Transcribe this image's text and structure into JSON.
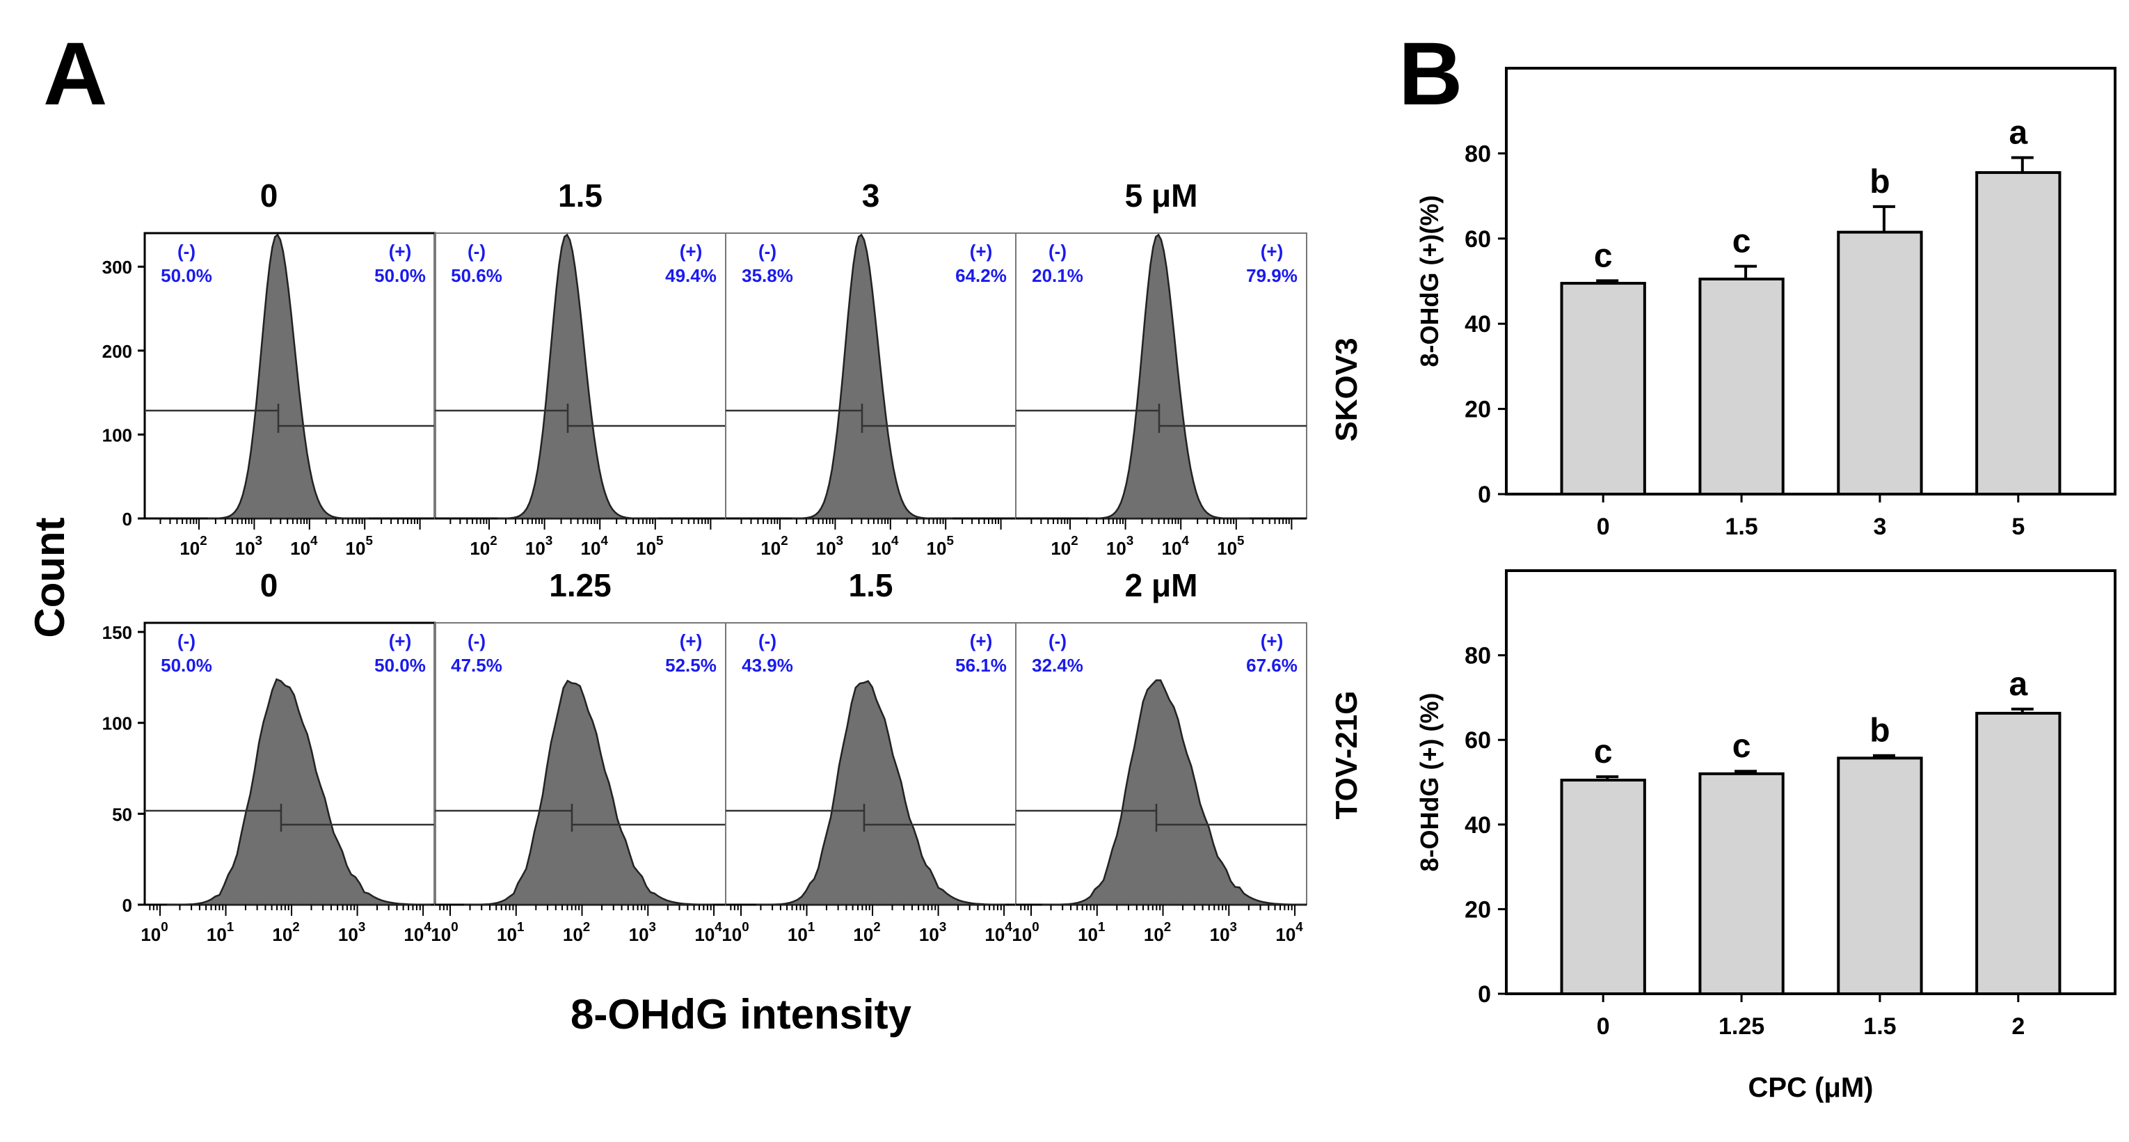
{
  "panels": {
    "a_label": "A",
    "b_label": "B"
  },
  "panel_a": {
    "y_title": "Count",
    "x_title": "8-OHdG intensity",
    "rows": [
      {
        "cell_line": "SKOV3",
        "y_ticks": [
          0,
          100,
          200,
          300
        ],
        "x_ticks": [
          "10^2",
          "10^3",
          "10^4",
          "10^5"
        ],
        "neg_label": "(-)",
        "pos_label": "(+)",
        "panels": [
          {
            "dose": "0",
            "neg_pct": "50.0%",
            "pos_pct": "50.0%"
          },
          {
            "dose": "1.5",
            "neg_pct": "50.6%",
            "pos_pct": "49.4%"
          },
          {
            "dose": "3",
            "neg_pct": "35.8%",
            "pos_pct": "64.2%"
          },
          {
            "dose": "5 μM",
            "neg_pct": "20.1%",
            "pos_pct": "79.9%"
          }
        ]
      },
      {
        "cell_line": "TOV-21G",
        "y_ticks": [
          0,
          50,
          100,
          150
        ],
        "x_ticks": [
          "10^0",
          "10^1",
          "10^2",
          "10^3",
          "10^4"
        ],
        "neg_label": "(-)",
        "pos_label": "(+)",
        "panels": [
          {
            "dose": "0",
            "neg_pct": "50.0%",
            "pos_pct": "50.0%"
          },
          {
            "dose": "1.25",
            "neg_pct": "47.5%",
            "pos_pct": "52.5%"
          },
          {
            "dose": "1.5",
            "neg_pct": "43.9%",
            "pos_pct": "56.1%"
          },
          {
            "dose": "2 μM",
            "neg_pct": "32.4%",
            "pos_pct": "67.6%"
          }
        ]
      }
    ]
  },
  "chart_data": [
    {
      "type": "bar",
      "title": "",
      "categories": [
        "0",
        "1.5",
        "3",
        "5"
      ],
      "values": [
        49.5,
        50.5,
        61.5,
        75.5
      ],
      "errors": [
        0.6,
        3.0,
        6.0,
        3.5
      ],
      "significance": [
        "c",
        "c",
        "b",
        "a"
      ],
      "ylabel": "8-OHdG (+)(%)",
      "xlabel": "",
      "ylim": [
        0,
        100
      ],
      "y_ticks": [
        0,
        20,
        40,
        60,
        80
      ]
    },
    {
      "type": "bar",
      "title": "",
      "categories": [
        "0",
        "1.25",
        "1.5",
        "2"
      ],
      "values": [
        50.5,
        52.0,
        55.7,
        66.3
      ],
      "errors": [
        0.8,
        0.6,
        0.6,
        1.0
      ],
      "significance": [
        "c",
        "c",
        "b",
        "a"
      ],
      "ylabel": "8-OHdG (+) (%)",
      "xlabel": "CPC (μM)",
      "ylim": [
        0,
        100
      ],
      "y_ticks": [
        0,
        20,
        40,
        60,
        80
      ]
    }
  ]
}
